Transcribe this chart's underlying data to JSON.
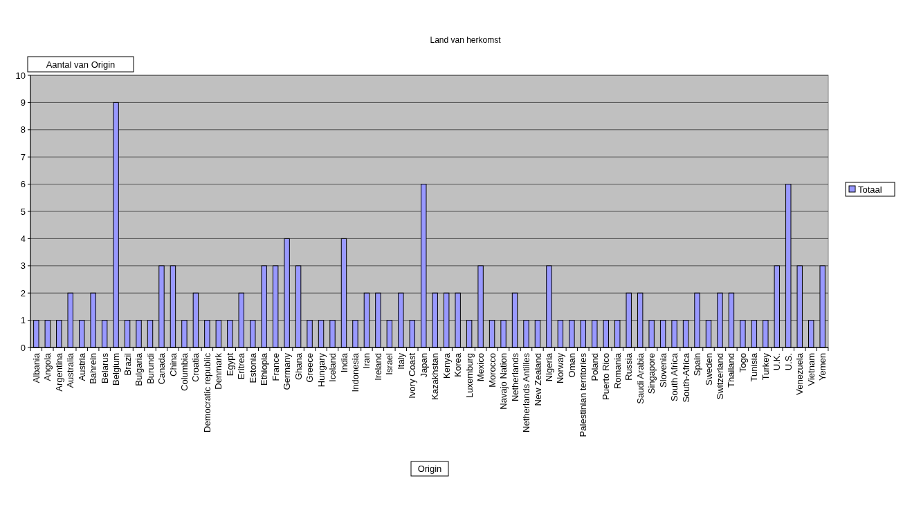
{
  "chart_data": {
    "type": "bar",
    "title": "Land van herkomst",
    "xlabel": "Origin",
    "ylabel": "Aantal van Origin",
    "categories": [
      "Albania",
      "Angola",
      "Argentina",
      "Australia",
      "Austria",
      "Bahrein",
      "Belarus",
      "Belgium",
      "Brazil",
      "Bulgaria",
      "Burundi",
      "Canada",
      "China",
      "Columbia",
      "Croatia",
      "Democratic republic",
      "Denmark",
      "Egypt",
      "Eritrea",
      "Estonia",
      "Ethiopia",
      "France",
      "Germany",
      "Ghana",
      "Greece",
      "Hungary",
      "Iceland",
      "India",
      "Indonesia",
      "Iran",
      "Ireland",
      "Israel",
      "Italy",
      "Ivory Coast",
      "Japan",
      "Kazakhstan",
      "Kenya",
      "Korea",
      "Luxemburg",
      "Mexico",
      "Morocco",
      "Navajo Nation",
      "Netherlands",
      "Netherlands Antilles",
      "New Zealand",
      "Nigeria",
      "Norway",
      "Oman",
      "Palestinian territories",
      "Poland",
      "Puerto Rico",
      "Romania",
      "Russia",
      "Saudi Arabia",
      "Singapore",
      "Slovenia",
      "South Africa",
      "South-Africa",
      "Spain",
      "Sweden",
      "Switzerland",
      "Thailand",
      "Togo",
      "Tunisia",
      "Turkey",
      "U.K.",
      "U.S.",
      "Venezuela",
      "Vietnam",
      "Yemen"
    ],
    "series": [
      {
        "name": "Totaal",
        "color": "#9999ff",
        "values": [
          1,
          1,
          1,
          2,
          1,
          2,
          1,
          9,
          1,
          1,
          1,
          3,
          3,
          1,
          2,
          1,
          1,
          1,
          2,
          1,
          3,
          3,
          4,
          3,
          1,
          1,
          1,
          4,
          1,
          2,
          2,
          1,
          2,
          1,
          6,
          2,
          2,
          2,
          1,
          3,
          1,
          1,
          2,
          1,
          1,
          3,
          1,
          1,
          1,
          1,
          1,
          1,
          2,
          2,
          1,
          1,
          1,
          1,
          2,
          1,
          2,
          2,
          1,
          1,
          1,
          3,
          6,
          3,
          1,
          3
        ]
      }
    ],
    "ylim": [
      0,
      10
    ],
    "yticks": [
      0,
      1,
      2,
      3,
      4,
      5,
      6,
      7,
      8,
      9,
      10
    ],
    "grid": "y",
    "legend": "right"
  }
}
